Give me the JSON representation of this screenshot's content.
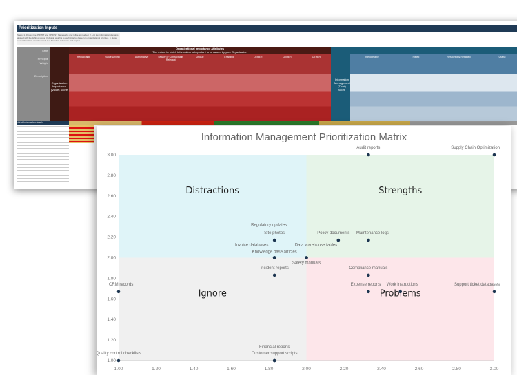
{
  "sheet": {
    "title": "Prioritization Inputs",
    "steps": "Steps: 1. Review the IPRUST and VPRUST frameworks and refine as needed. 2. List key information domains aligned with the defined scope. 3. Assign weights to each criterion based on organizational priorities. 4. Score each information domain from 1 to 3 based on relevance and impact.",
    "left_labels": [
      "Lens",
      "Principle",
      "Weight",
      "Description"
    ],
    "value_score_label": "Organization Importance (Value) Score",
    "org_heading": "Organizational Importance Attributes",
    "org_subheading": "The extent to which information is important to or valued by your Organization",
    "org_columns": [
      "Irreplaceable",
      "Value Driving",
      "Authoritative",
      "Legally or Contractually Relevant",
      "Unique",
      "Enabling",
      "OTHER",
      "OTHER",
      "OTHER"
    ],
    "trust_score_label": "Information Management (Trust) Score",
    "trust_columns": [
      "Interoperable",
      "Trusted",
      "Responsibly Retained",
      "Useful"
    ],
    "assets_heading": "List of Information Assets"
  },
  "chart_data": {
    "type": "scatter",
    "title": "Information Management Prioritization Matrix",
    "xlim": [
      1,
      3
    ],
    "ylim": [
      1,
      3
    ],
    "xticks": [
      "1.00",
      "1.20",
      "1.40",
      "1.60",
      "1.80",
      "2.00",
      "2.20",
      "2.40",
      "2.60",
      "2.80",
      "3.00"
    ],
    "yticks": [
      "1.00",
      "1.20",
      "1.40",
      "1.60",
      "1.80",
      "2.00",
      "2.20",
      "2.40",
      "2.60",
      "2.80",
      "3.00"
    ],
    "quadrants": [
      {
        "label": "Distractions",
        "color": "#dff4f8"
      },
      {
        "label": "Strengths",
        "color": "#e6f4e8"
      },
      {
        "label": "Ignore",
        "color": "#f0f0f0"
      },
      {
        "label": "Problems",
        "color": "#fde6ea"
      }
    ],
    "point_color": "#1c3550",
    "points": [
      {
        "label": "Audit reports",
        "x": 2.33,
        "y": 3.0
      },
      {
        "label": "Supply Chain Optimization",
        "x": 3.0,
        "y": 3.0
      },
      {
        "label": "Regulatory updates",
        "x": 1.83,
        "y": 2.0
      },
      {
        "label": "Site photos",
        "x": 1.83,
        "y": 2.17
      },
      {
        "label": "Invoice databases",
        "x": 1.83,
        "y": 2.0
      },
      {
        "label": "Knowledge base articles",
        "x": 1.83,
        "y": 2.0
      },
      {
        "label": "Data warehouse tables",
        "x": 2.0,
        "y": 2.0
      },
      {
        "label": "Safety manuals",
        "x": 2.0,
        "y": 2.0
      },
      {
        "label": "Policy documents",
        "x": 2.17,
        "y": 2.17
      },
      {
        "label": "Maintenance logs",
        "x": 2.33,
        "y": 2.17
      },
      {
        "label": "Incident reports",
        "x": 1.83,
        "y": 1.83
      },
      {
        "label": "Compliance manuals",
        "x": 2.33,
        "y": 1.83
      },
      {
        "label": "CRM records",
        "x": 1.0,
        "y": 1.67
      },
      {
        "label": "Expense reports",
        "x": 2.33,
        "y": 1.67
      },
      {
        "label": "Work instructions",
        "x": 2.5,
        "y": 1.67
      },
      {
        "label": "Support ticket databases",
        "x": 3.0,
        "y": 1.67
      },
      {
        "label": "Quality control checklists",
        "x": 1.0,
        "y": 1.0
      },
      {
        "label": "Customer support scripts",
        "x": 1.83,
        "y": 1.0
      },
      {
        "label": "Financial reports",
        "x": 1.83,
        "y": 1.0
      }
    ]
  }
}
